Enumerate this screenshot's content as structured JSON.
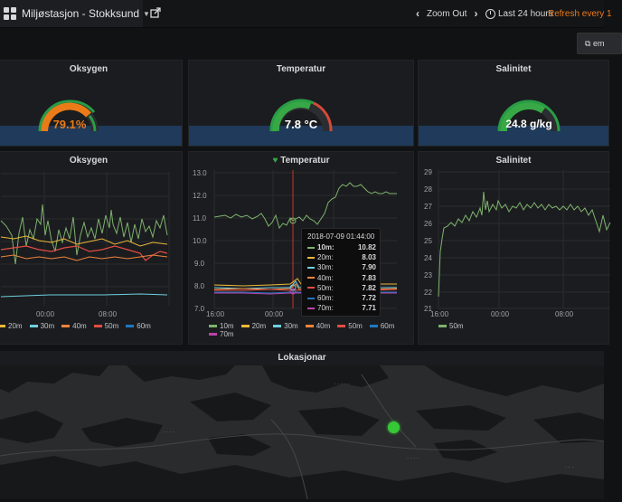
{
  "topbar": {
    "dashboard_title": "Miljøstasjon - Stokksund",
    "zoom_out": "Zoom Out",
    "time_range": "Last 24 hours",
    "refresh": "Refresh every 1"
  },
  "export_label": "em",
  "gauges": [
    {
      "title": "Oksygen",
      "value": "79.1%",
      "fraction": 0.791,
      "color": "#eb7b18"
    },
    {
      "title": "Temperatur",
      "value": "7.8 °C",
      "fraction": 0.62,
      "color": "#ffffff"
    },
    {
      "title": "Salinitet",
      "value": "24.8 g/kg",
      "fraction": 0.7,
      "color": "#ffffff"
    }
  ],
  "charts": [
    {
      "title": "Oksygen",
      "chart_data": {
        "type": "line",
        "x_ticks": [
          "00:00",
          "08:00"
        ],
        "legend": [
          "20m",
          "30m",
          "40m",
          "50m",
          "60m"
        ],
        "series_colors": [
          "#eab839",
          "#6ed0e0",
          "#ef843c",
          "#e24d42",
          "#1f78c1"
        ]
      }
    },
    {
      "title": "Temperatur",
      "chart_data": {
        "type": "line",
        "y_ticks": [
          "13.0",
          "12.0",
          "11.0",
          "10.0",
          "9.0",
          "8.0",
          "7.0"
        ],
        "ylim": [
          7.0,
          13.0
        ],
        "x_ticks": [
          "16:00",
          "00:00"
        ],
        "legend": [
          "10m",
          "20m",
          "30m",
          "40m",
          "50m",
          "60m",
          "70m"
        ],
        "series_colors": [
          "#7eb26d",
          "#eab839",
          "#6ed0e0",
          "#ef843c",
          "#e24d42",
          "#1f78c1",
          "#ba43a9"
        ]
      }
    },
    {
      "title": "Salinitet",
      "chart_data": {
        "type": "line",
        "y_ticks": [
          "29",
          "28",
          "27",
          "26",
          "25",
          "24",
          "23",
          "22",
          "21"
        ],
        "ylim": [
          21,
          29
        ],
        "x_ticks": [
          "16:00",
          "00:00",
          "08:00"
        ],
        "legend": [
          "50m"
        ],
        "series_colors": [
          "#7eb26d"
        ]
      }
    }
  ],
  "tooltip": {
    "time": "2018-07-09 01:44:00",
    "rows": [
      {
        "name": "10m:",
        "value": "10.82",
        "color": "#7eb26d"
      },
      {
        "name": "20m:",
        "value": "8.03",
        "color": "#eab839"
      },
      {
        "name": "30m:",
        "value": "7.90",
        "color": "#6ed0e0"
      },
      {
        "name": "40m:",
        "value": "7.83",
        "color": "#ef843c"
      },
      {
        "name": "50m:",
        "value": "7.82",
        "color": "#e24d42"
      },
      {
        "name": "60m:",
        "value": "7.72",
        "color": "#1f78c1"
      },
      {
        "name": "70m:",
        "value": "7.71",
        "color": "#ba43a9"
      }
    ]
  },
  "map": {
    "title": "Lokasjonar",
    "marker_color": "#37c837"
  }
}
